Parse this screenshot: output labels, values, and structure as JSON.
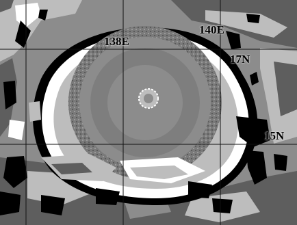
{
  "map": {
    "longitude_labels": [
      "138E",
      "140E"
    ],
    "latitude_labels": [
      "17N",
      "15N"
    ],
    "colors": {
      "background_gray": "#8c8c8c",
      "dark_gray": "#5e5e5e",
      "light_gray": "#bdbdbd",
      "white_band": "#ffffff",
      "black": "#000000",
      "grid_line": "#111111"
    }
  }
}
